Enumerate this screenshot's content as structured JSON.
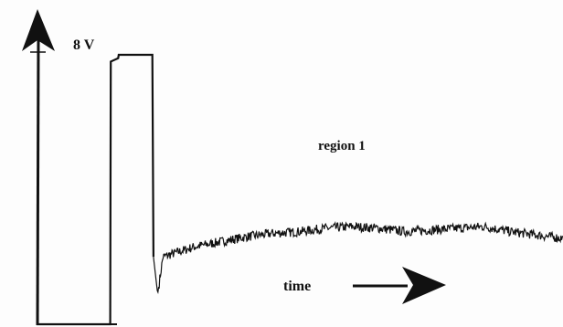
{
  "chart_data": {
    "type": "line",
    "title": "",
    "xlabel": "time",
    "ylabel": "",
    "y_top_label": "8 V",
    "ylim": [
      0,
      8
    ],
    "xlim": [
      0,
      100
    ],
    "annotations": [
      {
        "text": "region 1"
      }
    ],
    "grid": false,
    "legend": "none",
    "series": [
      {
        "x": [
          0,
          14.0,
          14.1,
          15.5,
          15.6,
          22.0,
          22.2,
          23.0,
          24.0,
          26,
          30,
          35,
          40,
          45,
          50,
          55,
          60,
          65,
          70,
          75,
          80,
          85,
          90,
          95,
          100
        ],
        "y": [
          0,
          0,
          7.8,
          7.9,
          8.0,
          8.0,
          2.0,
          0.9,
          2.0,
          2.1,
          2.3,
          2.45,
          2.6,
          2.7,
          2.75,
          2.85,
          2.9,
          2.85,
          2.75,
          2.8,
          2.85,
          2.9,
          2.75,
          2.65,
          2.55
        ]
      }
    ],
    "colors": {
      "trace": "#111111",
      "axis": "#111111",
      "background": "#fdfdfd"
    }
  }
}
